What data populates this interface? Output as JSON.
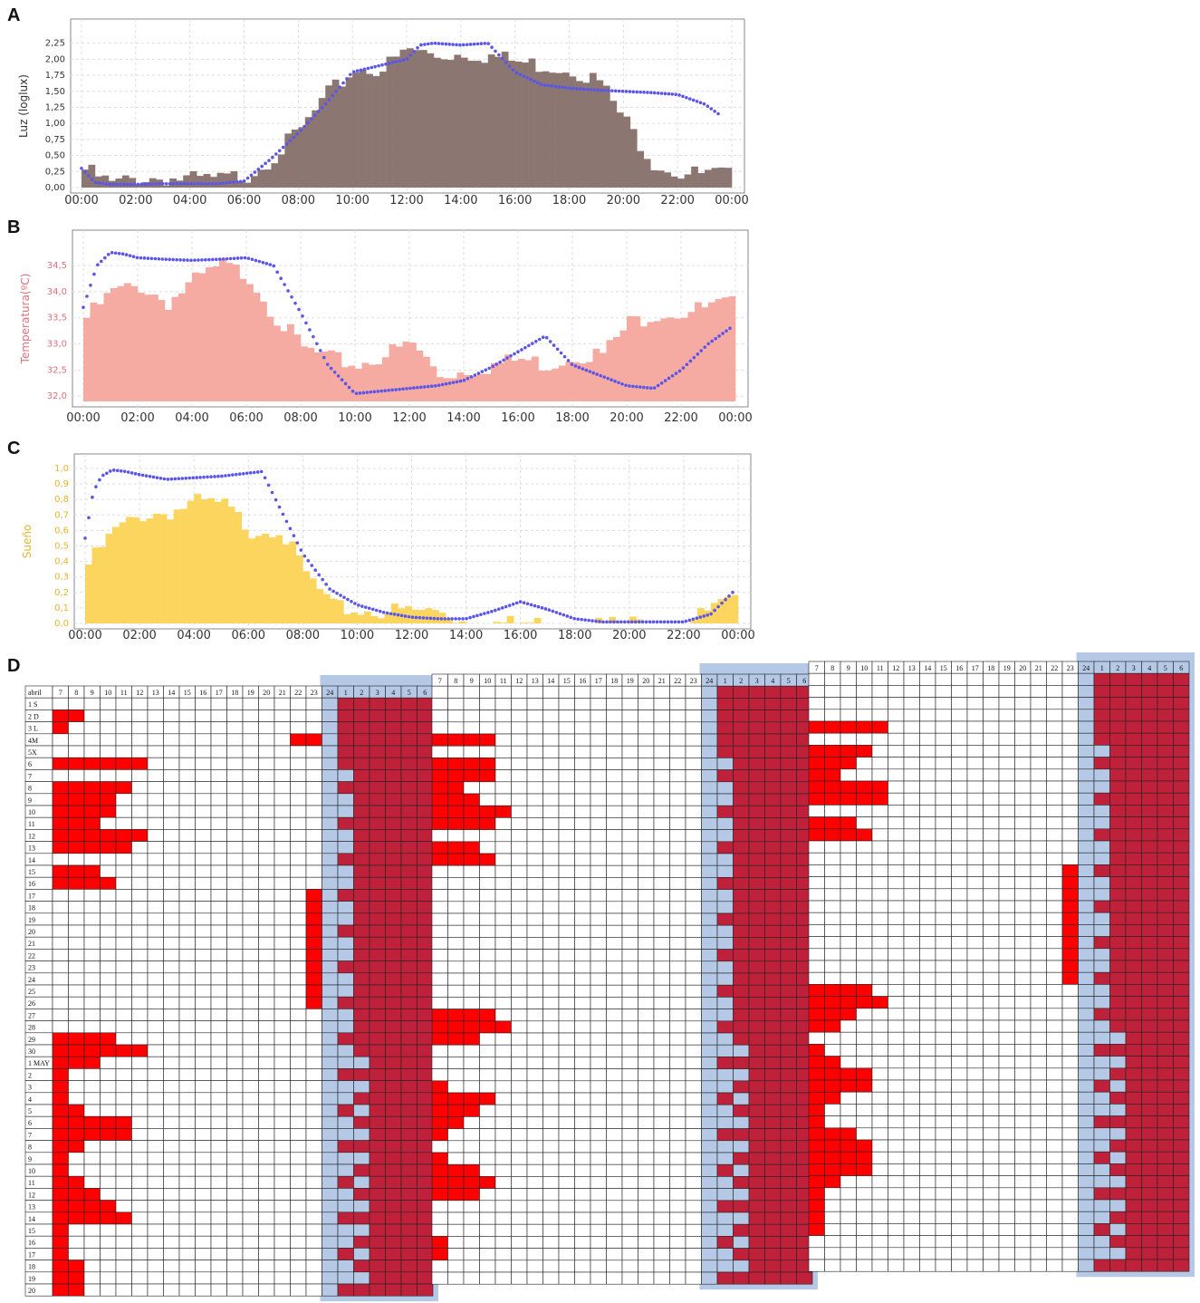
{
  "panels": {
    "a": {
      "label": "A"
    },
    "b": {
      "label": "B"
    },
    "c": {
      "label": "C"
    },
    "d": {
      "label": "D"
    }
  },
  "chart_data": [
    {
      "id": "A",
      "type": "bar",
      "ylabel": "Luz (loglux)",
      "ylim": [
        0,
        2.4
      ],
      "yticks": [
        "0,00",
        "0,25",
        "0,50",
        "0,75",
        "1,00",
        "1,25",
        "1,50",
        "1,75",
        "2,00",
        "2,25"
      ],
      "xticks": [
        "00:00",
        "02:00",
        "04:00",
        "06:00",
        "08:00",
        "10:00",
        "12:00",
        "14:00",
        "16:00",
        "18:00",
        "20:00",
        "22:00",
        "00:00"
      ],
      "bar_color": "#8c7672",
      "line_color": "#5b55e8",
      "grid": true,
      "bars": {
        "hours": [
          0,
          1,
          2,
          3,
          4,
          5,
          6,
          7,
          8,
          9,
          10,
          11,
          12,
          13,
          14,
          15,
          16,
          17,
          18,
          19,
          20,
          21,
          22,
          23,
          24
        ],
        "values": [
          0.28,
          0.05,
          0.15,
          0.15,
          0.12,
          0.12,
          0.2,
          0.5,
          0.9,
          1.45,
          1.85,
          1.85,
          2.15,
          2.05,
          2.1,
          2.05,
          1.95,
          1.9,
          1.85,
          1.65,
          1.0,
          0.4,
          0.22,
          0.2,
          0.2
        ]
      },
      "line": {
        "hours": [
          0,
          0.5,
          1,
          2,
          3,
          4,
          5,
          6,
          7,
          8,
          9,
          10,
          11,
          12,
          12.5,
          13,
          14,
          15,
          16,
          17,
          18,
          19,
          20,
          21,
          22,
          23,
          23.5
        ],
        "values": [
          0.3,
          0.08,
          0.05,
          0.05,
          0.06,
          0.06,
          0.06,
          0.1,
          0.45,
          0.85,
          1.3,
          1.8,
          1.9,
          2.0,
          2.22,
          2.25,
          2.22,
          2.25,
          1.8,
          1.6,
          1.55,
          1.52,
          1.5,
          1.48,
          1.45,
          1.3,
          1.15
        ]
      }
    },
    {
      "id": "B",
      "type": "bar",
      "ylabel": "Temperatura(ºC)",
      "ylim": [
        31.9,
        34.9
      ],
      "yticks": [
        "32,0",
        "32,5",
        "33,0",
        "33,5",
        "34,0",
        "34,5"
      ],
      "xticks": [
        "00:00",
        "02:00",
        "04:00",
        "06:00",
        "08:00",
        "10:00",
        "12:00",
        "14:00",
        "16:00",
        "18:00",
        "20:00",
        "22:00",
        "00:00"
      ],
      "bar_color": "#f5aaa2",
      "line_color": "#5b55e8",
      "grid": true,
      "bars": {
        "hours": [
          0,
          1,
          2,
          3,
          4,
          5,
          6,
          7,
          8,
          9,
          10,
          11,
          12,
          13,
          14,
          15,
          16,
          17,
          18,
          19,
          20,
          21,
          22,
          23,
          24
        ],
        "values": [
          33.5,
          34.0,
          34.1,
          33.8,
          34.2,
          34.5,
          34.3,
          33.5,
          32.9,
          32.7,
          32.6,
          32.8,
          33.0,
          32.4,
          32.5,
          32.6,
          32.7,
          32.6,
          32.8,
          32.8,
          33.4,
          33.6,
          33.6,
          33.7,
          33.8
        ]
      },
      "line": {
        "hours": [
          0,
          0.5,
          1,
          1.5,
          2,
          3,
          4,
          5,
          6,
          7,
          8,
          9,
          10,
          11,
          12,
          13,
          14,
          15,
          16,
          17,
          18,
          19,
          20,
          21,
          22,
          23,
          23.8
        ],
        "values": [
          33.7,
          34.5,
          34.75,
          34.72,
          34.65,
          34.62,
          34.6,
          34.62,
          34.65,
          34.5,
          33.6,
          32.6,
          32.05,
          32.1,
          32.15,
          32.2,
          32.3,
          32.55,
          32.85,
          33.15,
          32.6,
          32.4,
          32.2,
          32.15,
          32.5,
          33.0,
          33.3
        ]
      }
    },
    {
      "id": "C",
      "type": "bar",
      "ylabel": "Sueño",
      "ylim": [
        0,
        1.0
      ],
      "yticks": [
        "0,0",
        "0,1",
        "0,2",
        "0,3",
        "0,4",
        "0,5",
        "0,6",
        "0,7",
        "0,8",
        "0,9",
        "1,0"
      ],
      "xticks": [
        "00:00",
        "02:00",
        "04:00",
        "06:00",
        "08:00",
        "10:00",
        "12:00",
        "14:00",
        "16:00",
        "18:00",
        "20:00",
        "22:00",
        "00:00"
      ],
      "bar_color": "#fcd55e",
      "line_color": "#5b55e8",
      "grid": true,
      "bars": {
        "hours": [
          0,
          1,
          2,
          3,
          4,
          5,
          6,
          7,
          8,
          9,
          10,
          11,
          12,
          13,
          14,
          15,
          16,
          17,
          18,
          19,
          20,
          21,
          22,
          23,
          24
        ],
        "values": [
          0.38,
          0.6,
          0.7,
          0.72,
          0.78,
          0.76,
          0.6,
          0.62,
          0.32,
          0.1,
          0.08,
          0.08,
          0.08,
          0.08,
          0.0,
          0.0,
          0.0,
          0.0,
          0.0,
          0.0,
          0.0,
          0.0,
          0.0,
          0.1,
          0.15
        ]
      },
      "line": {
        "hours": [
          0,
          0.3,
          0.6,
          1,
          1.5,
          2,
          3,
          4,
          5,
          6,
          6.5,
          7,
          8,
          9,
          10,
          11,
          12,
          13,
          14,
          15,
          16,
          17,
          18,
          19,
          20,
          21,
          22,
          23,
          23.8
        ],
        "values": [
          0.55,
          0.85,
          0.95,
          0.99,
          0.98,
          0.96,
          0.93,
          0.94,
          0.95,
          0.97,
          0.98,
          0.8,
          0.45,
          0.22,
          0.12,
          0.07,
          0.04,
          0.03,
          0.03,
          0.08,
          0.14,
          0.09,
          0.03,
          0.01,
          0.01,
          0.01,
          0.01,
          0.06,
          0.2
        ]
      }
    },
    {
      "id": "D",
      "type": "table",
      "title": "abril",
      "hour_labels": [
        "7",
        "8",
        "9",
        "10",
        "11",
        "12",
        "13",
        "14",
        "15",
        "16",
        "17",
        "18",
        "19",
        "20",
        "21",
        "22",
        "23",
        "24",
        "1",
        "2",
        "3",
        "4",
        "5",
        "6"
      ],
      "row_labels": [
        "1 S",
        "2 D",
        "3 L",
        "4M",
        "5X",
        "6",
        "7",
        "8",
        "9",
        "10",
        "11",
        "12",
        "13",
        "14",
        "15",
        "16",
        "17",
        "18",
        "19",
        "20",
        "21",
        "22",
        "23",
        "24",
        "25",
        "26",
        "27",
        "28",
        "29",
        "30",
        "1 MAY",
        "2",
        "3",
        "4",
        "5",
        "6",
        "7",
        "8",
        "9",
        "10",
        "11",
        "12",
        "13",
        "14",
        "15",
        "16",
        "17",
        "18",
        "19",
        "20"
      ],
      "colors": {
        "light": "#ff0000",
        "sleep": "#c0213a",
        "rest": "#b5c9e6",
        "empty": "#ffffff"
      },
      "light_hours_per_row": [
        [
          [],
          [],
          []
        ],
        [
          [
            0,
            1
          ],
          [],
          []
        ],
        [
          [
            0
          ],
          [],
          []
        ],
        [
          [
            15,
            16
          ],
          [],
          []
        ],
        [
          [],
          [
            0,
            1,
            2,
            3
          ],
          [
            0,
            1,
            2,
            3,
            4
          ]
        ],
        [
          [
            0,
            1,
            2,
            3,
            4,
            5
          ],
          [],
          []
        ],
        [
          [],
          [
            0,
            1,
            2,
            3
          ],
          [
            0,
            1,
            2,
            3
          ]
        ],
        [
          [
            0,
            1,
            2,
            3,
            4
          ],
          [
            0,
            1,
            2,
            3
          ],
          [
            0,
            1,
            2
          ]
        ],
        [
          [
            0,
            1,
            2,
            3
          ],
          [
            0,
            1
          ],
          [
            0,
            1
          ]
        ],
        [
          [
            0,
            1,
            2,
            3
          ],
          [
            0,
            1,
            2
          ],
          [
            0,
            1,
            2,
            3,
            4
          ]
        ],
        [
          [
            0,
            1,
            2
          ],
          [
            0,
            1,
            2,
            3,
            4
          ],
          [
            0,
            1,
            2,
            3,
            4
          ]
        ],
        [
          [
            0,
            1,
            2,
            3,
            4,
            5
          ],
          [
            0,
            1,
            2,
            3
          ],
          []
        ],
        [
          [
            0,
            1,
            2,
            3,
            4
          ],
          [],
          [
            0,
            1,
            2
          ]
        ],
        [
          [],
          [
            0,
            1,
            2
          ],
          [
            0,
            1,
            2,
            3
          ]
        ],
        [
          [
            0,
            1,
            2
          ],
          [
            0,
            1,
            2,
            3
          ],
          []
        ],
        [
          [
            0,
            1,
            2,
            3
          ],
          [],
          []
        ],
        [
          [],
          [],
          []
        ],
        [
          [],
          [],
          []
        ],
        [
          [],
          [],
          []
        ],
        [
          [],
          [],
          []
        ],
        [
          [],
          [],
          []
        ],
        [
          [],
          [],
          []
        ],
        [
          [],
          [],
          []
        ],
        [
          [],
          [],
          []
        ],
        [
          [],
          [],
          []
        ],
        [
          [],
          [],
          []
        ],
        [
          [],
          [],
          [
            0,
            1,
            2,
            3
          ]
        ],
        [
          [],
          [
            0,
            1,
            2,
            3
          ],
          [
            0,
            1,
            2,
            3,
            4
          ]
        ],
        [
          [
            0,
            1,
            2,
            3
          ],
          [
            0,
            1,
            2,
            3,
            4
          ],
          [
            0,
            1,
            2
          ]
        ],
        [
          [
            0,
            1,
            2,
            3,
            4,
            5
          ],
          [
            0,
            1,
            2
          ],
          [
            0,
            1
          ]
        ],
        [
          [
            0,
            1,
            2
          ],
          [],
          []
        ],
        [
          [
            0
          ],
          [],
          [
            0
          ]
        ],
        [
          [
            0
          ],
          [],
          [
            0,
            1
          ]
        ],
        [
          [
            0
          ],
          [
            0
          ],
          [
            0,
            1,
            2,
            3
          ]
        ],
        [
          [
            0,
            1
          ],
          [
            0,
            1,
            2,
            3
          ],
          [
            0,
            1,
            2,
            3
          ]
        ],
        [
          [
            0,
            1,
            2,
            3,
            4
          ],
          [
            0,
            1,
            2
          ],
          [
            0,
            1
          ]
        ],
        [
          [
            0,
            1,
            2,
            3,
            4
          ],
          [
            0,
            1
          ],
          [
            0
          ]
        ],
        [
          [
            0,
            1
          ],
          [
            0
          ],
          [
            0
          ]
        ],
        [
          [
            0
          ],
          [],
          [
            0,
            1,
            2
          ]
        ],
        [
          [
            0
          ],
          [
            0
          ],
          [
            0,
            1,
            2,
            3
          ]
        ],
        [
          [
            0,
            1
          ],
          [
            0,
            1,
            2
          ],
          [
            0,
            1,
            2,
            3
          ]
        ],
        [
          [
            0,
            1,
            2
          ],
          [
            0,
            1,
            2,
            3
          ],
          [
            0,
            1,
            2,
            3
          ]
        ],
        [
          [
            0,
            1,
            2,
            3
          ],
          [
            0,
            1,
            2
          ],
          [
            0,
            1
          ]
        ],
        [
          [
            0,
            1,
            2,
            3,
            4
          ],
          [],
          [
            0
          ]
        ],
        [
          [
            0
          ],
          [],
          [
            0
          ]
        ],
        [
          [
            0
          ],
          [],
          [
            0
          ]
        ],
        [
          [
            0
          ],
          [
            0
          ],
          [
            0
          ]
        ],
        [
          [
            0,
            1
          ],
          [
            0
          ],
          []
        ],
        [
          [
            0,
            1
          ],
          [],
          []
        ],
        [
          [
            0,
            1
          ],
          [],
          []
        ]
      ]
    }
  ]
}
